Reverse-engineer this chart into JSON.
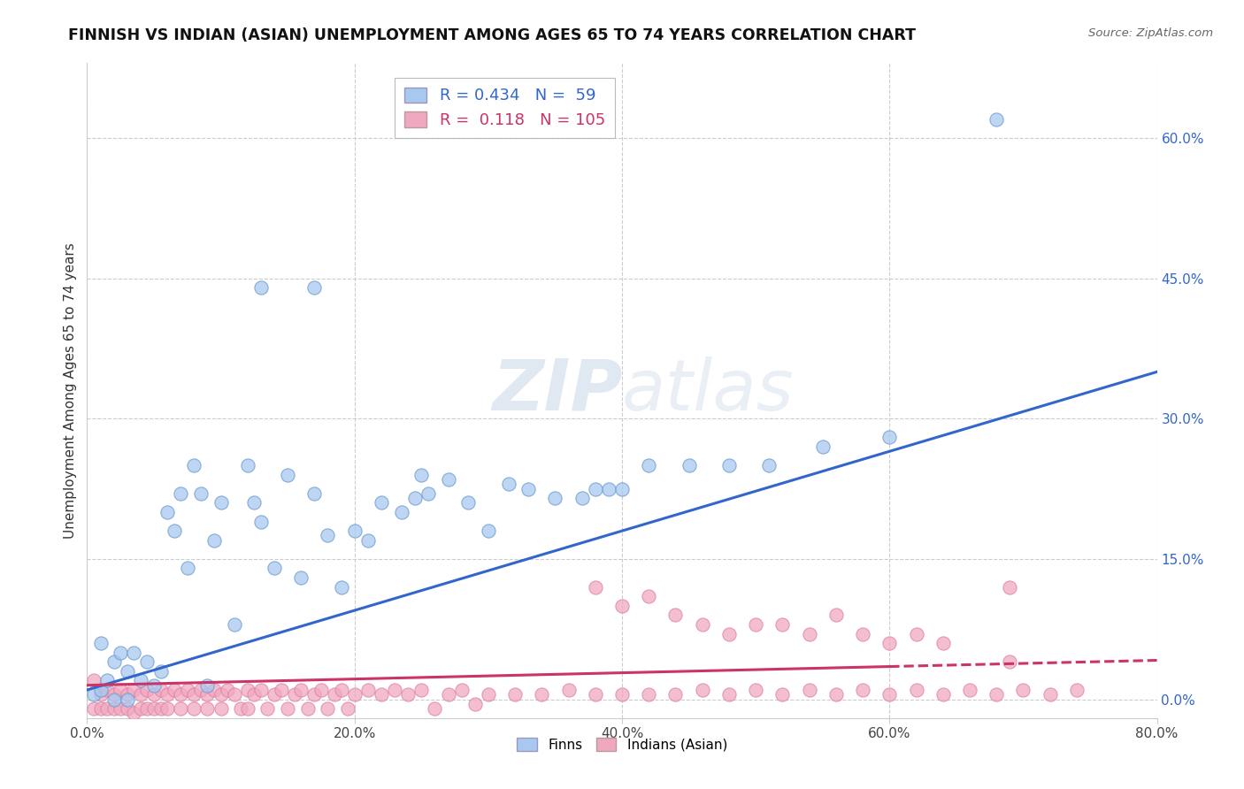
{
  "title": "FINNISH VS INDIAN (ASIAN) UNEMPLOYMENT AMONG AGES 65 TO 74 YEARS CORRELATION CHART",
  "source": "Source: ZipAtlas.com",
  "ylabel": "Unemployment Among Ages 65 to 74 years",
  "xlim": [
    0,
    0.8
  ],
  "ylim": [
    -0.02,
    0.68
  ],
  "xticks": [
    0.0,
    0.2,
    0.4,
    0.6,
    0.8
  ],
  "xtick_labels": [
    "0.0%",
    "20.0%",
    "40.0%",
    "60.0%",
    "80.0%"
  ],
  "yticks_right": [
    0.0,
    0.15,
    0.3,
    0.45,
    0.6
  ],
  "ytick_right_labels": [
    "0.0%",
    "15.0%",
    "30.0%",
    "45.0%",
    "60.0%"
  ],
  "r_finn": 0.434,
  "n_finn": 59,
  "r_indian": 0.118,
  "n_indian": 105,
  "finn_color": "#a8c8f0",
  "indian_color": "#f0a8c0",
  "finn_line_color": "#3366cc",
  "indian_line_color": "#cc3366",
  "watermark": "ZIPatlas",
  "background_color": "#ffffff",
  "finn_x": [
    0.005,
    0.01,
    0.01,
    0.015,
    0.02,
    0.02,
    0.025,
    0.03,
    0.03,
    0.035,
    0.04,
    0.045,
    0.05,
    0.055,
    0.06,
    0.065,
    0.07,
    0.075,
    0.08,
    0.085,
    0.09,
    0.095,
    0.1,
    0.11,
    0.12,
    0.125,
    0.13,
    0.14,
    0.15,
    0.16,
    0.17,
    0.18,
    0.19,
    0.2,
    0.21,
    0.22,
    0.235,
    0.245,
    0.255,
    0.27,
    0.285,
    0.3,
    0.315,
    0.33,
    0.35,
    0.37,
    0.39,
    0.42,
    0.45,
    0.48,
    0.51,
    0.55,
    0.6,
    0.13,
    0.17,
    0.38,
    0.4,
    0.68,
    0.25
  ],
  "finn_y": [
    0.005,
    0.01,
    0.06,
    0.02,
    0.0,
    0.04,
    0.05,
    0.0,
    0.03,
    0.05,
    0.02,
    0.04,
    0.015,
    0.03,
    0.2,
    0.18,
    0.22,
    0.14,
    0.25,
    0.22,
    0.015,
    0.17,
    0.21,
    0.08,
    0.25,
    0.21,
    0.19,
    0.14,
    0.24,
    0.13,
    0.22,
    0.175,
    0.12,
    0.18,
    0.17,
    0.21,
    0.2,
    0.215,
    0.22,
    0.235,
    0.21,
    0.18,
    0.23,
    0.225,
    0.215,
    0.215,
    0.225,
    0.25,
    0.25,
    0.25,
    0.25,
    0.27,
    0.28,
    0.44,
    0.44,
    0.225,
    0.225,
    0.62,
    0.24
  ],
  "indian_x": [
    0.005,
    0.005,
    0.01,
    0.01,
    0.015,
    0.015,
    0.02,
    0.02,
    0.025,
    0.025,
    0.03,
    0.03,
    0.035,
    0.035,
    0.04,
    0.04,
    0.045,
    0.045,
    0.05,
    0.05,
    0.055,
    0.055,
    0.06,
    0.06,
    0.065,
    0.07,
    0.07,
    0.075,
    0.08,
    0.08,
    0.085,
    0.09,
    0.09,
    0.095,
    0.1,
    0.1,
    0.105,
    0.11,
    0.115,
    0.12,
    0.12,
    0.125,
    0.13,
    0.135,
    0.14,
    0.145,
    0.15,
    0.155,
    0.16,
    0.165,
    0.17,
    0.175,
    0.18,
    0.185,
    0.19,
    0.195,
    0.2,
    0.21,
    0.22,
    0.23,
    0.24,
    0.25,
    0.26,
    0.27,
    0.28,
    0.29,
    0.3,
    0.32,
    0.34,
    0.36,
    0.38,
    0.4,
    0.42,
    0.44,
    0.46,
    0.48,
    0.5,
    0.52,
    0.54,
    0.56,
    0.58,
    0.6,
    0.62,
    0.64,
    0.66,
    0.68,
    0.7,
    0.72,
    0.74,
    0.38,
    0.4,
    0.42,
    0.44,
    0.46,
    0.48,
    0.5,
    0.52,
    0.54,
    0.56,
    0.58,
    0.6,
    0.62,
    0.64,
    0.69,
    0.69
  ],
  "indian_y": [
    0.02,
    -0.01,
    0.005,
    -0.01,
    0.01,
    -0.01,
    0.005,
    -0.01,
    0.01,
    -0.01,
    0.005,
    -0.01,
    0.01,
    -0.015,
    0.005,
    -0.01,
    0.01,
    -0.01,
    0.005,
    -0.01,
    0.01,
    -0.01,
    0.005,
    -0.01,
    0.01,
    0.005,
    -0.01,
    0.01,
    0.005,
    -0.01,
    0.01,
    0.005,
    -0.01,
    0.01,
    0.005,
    -0.01,
    0.01,
    0.005,
    -0.01,
    0.01,
    -0.01,
    0.005,
    0.01,
    -0.01,
    0.005,
    0.01,
    -0.01,
    0.005,
    0.01,
    -0.01,
    0.005,
    0.01,
    -0.01,
    0.005,
    0.01,
    -0.01,
    0.005,
    0.01,
    0.005,
    0.01,
    0.005,
    0.01,
    -0.01,
    0.005,
    0.01,
    -0.005,
    0.005,
    0.005,
    0.005,
    0.01,
    0.005,
    0.005,
    0.005,
    0.005,
    0.01,
    0.005,
    0.01,
    0.005,
    0.01,
    0.005,
    0.01,
    0.005,
    0.01,
    0.005,
    0.01,
    0.005,
    0.01,
    0.005,
    0.01,
    0.12,
    0.1,
    0.11,
    0.09,
    0.08,
    0.07,
    0.08,
    0.08,
    0.07,
    0.09,
    0.07,
    0.06,
    0.07,
    0.06,
    0.12,
    0.04
  ],
  "finn_line_x0": 0.0,
  "finn_line_y0": 0.01,
  "finn_line_x1": 0.8,
  "finn_line_y1": 0.35,
  "indian_line_x0": 0.0,
  "indian_line_y0": 0.015,
  "indian_line_x1": 0.6,
  "indian_line_y1": 0.035,
  "indian_line_dash_x0": 0.6,
  "indian_line_dash_x1": 0.8
}
